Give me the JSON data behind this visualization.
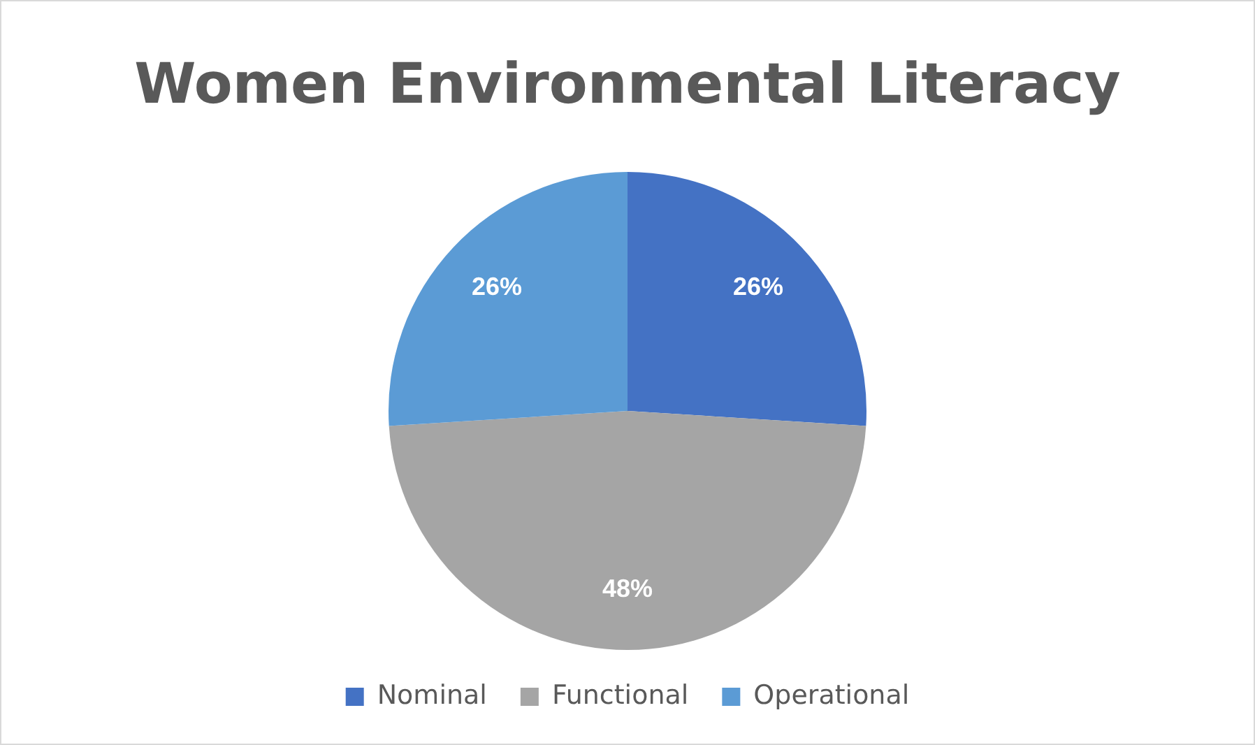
{
  "chart_data": {
    "type": "pie",
    "title": "Women Environmental Literacy",
    "categories": [
      "Nominal",
      "Functional",
      "Operational"
    ],
    "values": [
      26,
      48,
      26
    ],
    "value_labels": [
      "26%",
      "48%",
      "26%"
    ],
    "colors": [
      "#4472c4",
      "#a5a5a5",
      "#5b9bd5"
    ],
    "legend": "bottom"
  }
}
